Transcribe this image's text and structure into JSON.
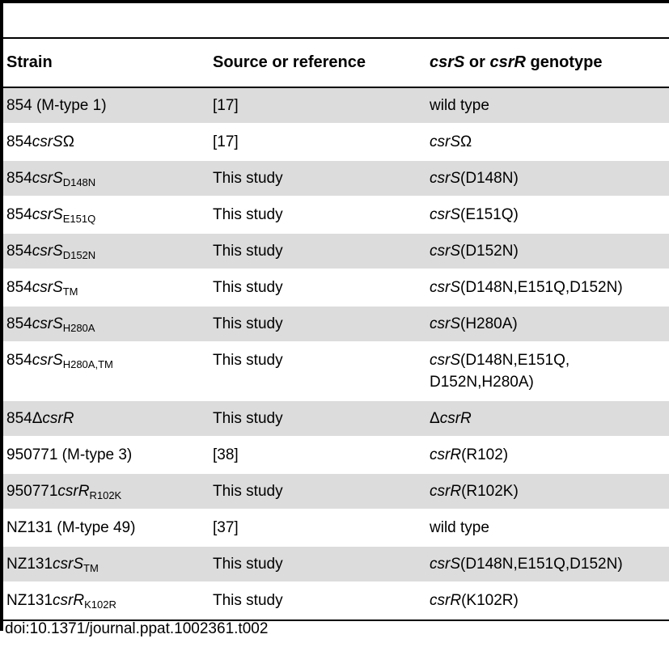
{
  "table": {
    "headers": {
      "strain": "Strain",
      "source": "Source or reference",
      "genotype_a": "csrS",
      "genotype_or": " or ",
      "genotype_b": "csrR",
      "genotype_tail": " genotype"
    },
    "rows": [
      {
        "strain_base": "854 (M-type 1)",
        "strain_italic": "",
        "strain_symbol": "",
        "strain_sub": "",
        "source": "[17]",
        "geno_italic": "",
        "geno_text": "wild type",
        "geno_text2": ""
      },
      {
        "strain_base": "854",
        "strain_italic": "csrS",
        "strain_symbol": "Ω",
        "strain_sub": "",
        "source": "[17]",
        "geno_italic": "csrS",
        "geno_text": "Ω",
        "geno_text2": ""
      },
      {
        "strain_base": "854",
        "strain_italic": "csrS",
        "strain_symbol": "",
        "strain_sub": "D148N",
        "source": "This study",
        "geno_italic": "csrS",
        "geno_text": "(D148N)",
        "geno_text2": ""
      },
      {
        "strain_base": "854",
        "strain_italic": "csrS",
        "strain_symbol": "",
        "strain_sub": "E151Q",
        "source": "This study",
        "geno_italic": "csrS",
        "geno_text": "(E151Q)",
        "geno_text2": ""
      },
      {
        "strain_base": "854",
        "strain_italic": "csrS",
        "strain_symbol": "",
        "strain_sub": "D152N",
        "source": "This study",
        "geno_italic": "csrS",
        "geno_text": "(D152N)",
        "geno_text2": ""
      },
      {
        "strain_base": "854",
        "strain_italic": "csrS",
        "strain_symbol": "",
        "strain_sub": "TM",
        "source": "This study",
        "geno_italic": "csrS",
        "geno_text": "(D148N,E151Q,D152N)",
        "geno_text2": ""
      },
      {
        "strain_base": "854",
        "strain_italic": "csrS",
        "strain_symbol": "",
        "strain_sub": "H280A",
        "source": "This study",
        "geno_italic": "csrS",
        "geno_text": "(H280A)",
        "geno_text2": ""
      },
      {
        "strain_base": "854",
        "strain_italic": "csrS",
        "strain_symbol": "",
        "strain_sub": "H280A,TM",
        "source": "This study",
        "geno_italic": "csrS",
        "geno_text": "(D148N,E151Q,",
        "geno_text2": "D152N,H280A)"
      },
      {
        "strain_base": "854Δ",
        "strain_italic": "csrR",
        "strain_symbol": "",
        "strain_sub": "",
        "source": "This study",
        "geno_prefix": "Δ",
        "geno_italic": "csrR",
        "geno_text": "",
        "geno_text2": ""
      },
      {
        "strain_base": "950771 (M-type 3)",
        "strain_italic": "",
        "strain_symbol": "",
        "strain_sub": "",
        "source": "[38]",
        "geno_italic": "csrR",
        "geno_text": "(R102)",
        "geno_text2": ""
      },
      {
        "strain_base": "950771",
        "strain_italic": "csrR",
        "strain_symbol": "",
        "strain_sub": "R102K",
        "source": "This study",
        "geno_italic": "csrR",
        "geno_text": "(R102K)",
        "geno_text2": ""
      },
      {
        "strain_base": "NZ131 (M-type 49)",
        "strain_italic": "",
        "strain_symbol": "",
        "strain_sub": "",
        "source": "[37]",
        "geno_italic": "",
        "geno_text": "wild type",
        "geno_text2": ""
      },
      {
        "strain_base": "NZ131",
        "strain_italic": "csrS",
        "strain_symbol": "",
        "strain_sub": "TM",
        "source": "This study",
        "geno_italic": "csrS",
        "geno_text": "(D148N,E151Q,D152N)",
        "geno_text2": ""
      },
      {
        "strain_base": "NZ131",
        "strain_italic": "csrR",
        "strain_symbol": "",
        "strain_sub": "K102R",
        "source": "This study",
        "geno_italic": "csrR",
        "geno_text": "(K102R)",
        "geno_text2": ""
      }
    ]
  },
  "doi": "doi:10.1371/journal.ppat.1002361.t002",
  "colors": {
    "shade": "#dcdcdc",
    "rule": "#000000"
  }
}
